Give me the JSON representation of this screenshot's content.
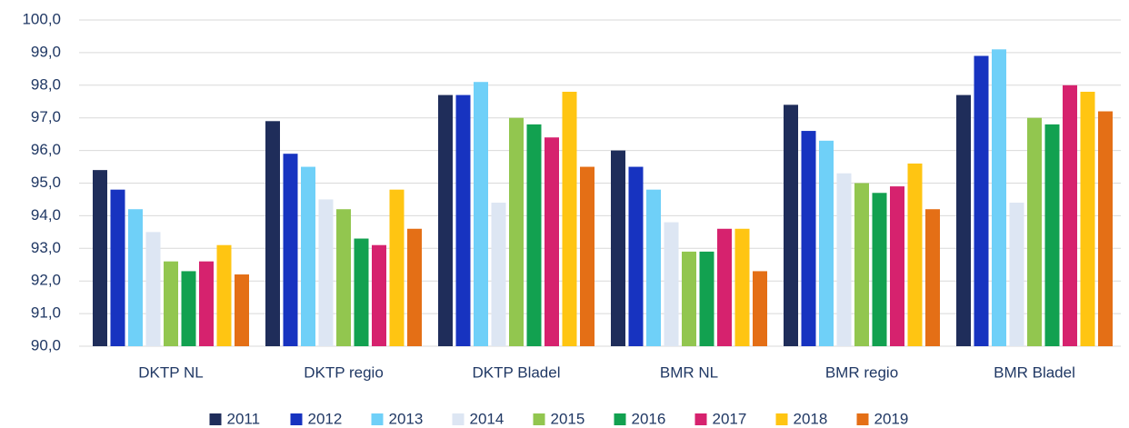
{
  "chart_data": {
    "type": "bar",
    "categories": [
      "DKTP NL",
      "DKTP regio",
      "DKTP Bladel",
      "BMR NL",
      "BMR regio",
      "BMR Bladel"
    ],
    "series": [
      {
        "name": "2011",
        "color": "#1f2d5a",
        "values": [
          95.4,
          96.9,
          97.7,
          96.0,
          97.4,
          97.7
        ]
      },
      {
        "name": "2012",
        "color": "#1733c0",
        "values": [
          94.8,
          95.9,
          97.7,
          95.5,
          96.6,
          98.9
        ]
      },
      {
        "name": "2013",
        "color": "#6fd0f8",
        "values": [
          94.2,
          95.5,
          98.1,
          94.8,
          96.3,
          99.1
        ]
      },
      {
        "name": "2014",
        "color": "#dde6f3",
        "values": [
          93.5,
          94.5,
          94.4,
          93.8,
          95.3,
          94.4
        ]
      },
      {
        "name": "2015",
        "color": "#92c64f",
        "values": [
          92.6,
          94.2,
          97.0,
          92.9,
          95.0,
          97.0
        ]
      },
      {
        "name": "2016",
        "color": "#12a150",
        "values": [
          92.3,
          93.3,
          96.8,
          92.9,
          94.7,
          96.8
        ]
      },
      {
        "name": "2017",
        "color": "#d6226e",
        "values": [
          92.6,
          93.1,
          96.4,
          93.6,
          94.9,
          98.0
        ]
      },
      {
        "name": "2018",
        "color": "#ffc512",
        "values": [
          93.1,
          94.8,
          97.8,
          93.6,
          95.6,
          97.8
        ]
      },
      {
        "name": "2019",
        "color": "#e46f16",
        "values": [
          92.2,
          93.6,
          95.5,
          92.3,
          94.2,
          97.2
        ]
      }
    ],
    "ylim": [
      90,
      100
    ],
    "yticks": [
      {
        "value": 90,
        "label": "90,0"
      },
      {
        "value": 91,
        "label": "91,0"
      },
      {
        "value": 92,
        "label": "92,0"
      },
      {
        "value": 93,
        "label": "93,0"
      },
      {
        "value": 94,
        "label": "94,0"
      },
      {
        "value": 95,
        "label": "95,0"
      },
      {
        "value": 96,
        "label": "96,0"
      },
      {
        "value": 97,
        "label": "97,0"
      },
      {
        "value": 98,
        "label": "98,0"
      },
      {
        "value": 99,
        "label": "99,0"
      },
      {
        "value": 100,
        "label": "100,0"
      }
    ],
    "grid": true,
    "legend": "bottom"
  }
}
